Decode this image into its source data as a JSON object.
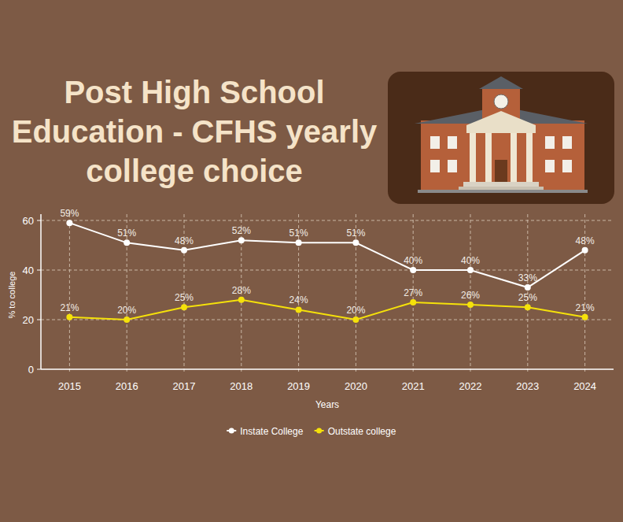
{
  "chart_data": {
    "type": "line",
    "title": "Post High School Education - CFHS yearly college choice",
    "xlabel": "Years",
    "ylabel": "% to college",
    "categories": [
      "2015",
      "2016",
      "2017",
      "2018",
      "2019",
      "2020",
      "2021",
      "2022",
      "2023",
      "2024"
    ],
    "series": [
      {
        "name": "Instate College",
        "color": "#ffffff",
        "marker": "circle",
        "line_style": "solid",
        "values": [
          59,
          51,
          48,
          52,
          51,
          51,
          40,
          40,
          33,
          48
        ],
        "value_labels": [
          "59%",
          "51%",
          "48%",
          "52%",
          "51%",
          "51%",
          "40%",
          "40%",
          "33%",
          "48%"
        ]
      },
      {
        "name": "Outstate college",
        "color": "#f5e10a",
        "marker": "circle",
        "line_style": "solid",
        "values": [
          21,
          20,
          25,
          28,
          24,
          20,
          27,
          26,
          25,
          21
        ],
        "value_labels": [
          "21%",
          "20%",
          "25%",
          "28%",
          "24%",
          "20%",
          "27%",
          "26%",
          "25%",
          "21%"
        ]
      }
    ],
    "ylim": [
      0,
      60
    ],
    "yticks": [
      0,
      20,
      40,
      60
    ],
    "grid": true,
    "legend": "bottom",
    "data_labels": true
  }
}
